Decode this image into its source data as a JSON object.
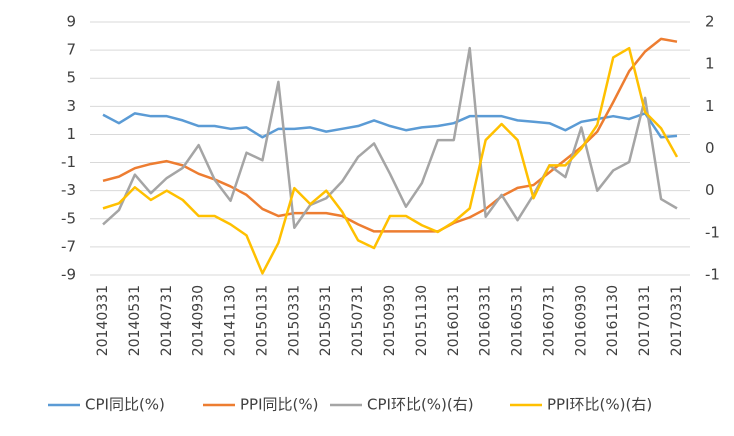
{
  "chart_data": {
    "type": "line",
    "categories": [
      "20140331",
      null,
      "20140531",
      null,
      "20140731",
      null,
      "20140930",
      null,
      "20141130",
      null,
      "20150131",
      null,
      "20150331",
      null,
      "20150531",
      null,
      "20150731",
      null,
      "20150930",
      null,
      "20151130",
      null,
      "20160131",
      null,
      "20160331",
      null,
      "20160531",
      null,
      "20160731",
      null,
      "20160930",
      null,
      "20161130",
      null,
      "20170131",
      null,
      "20170331"
    ],
    "ylim": [
      -9,
      9
    ],
    "yticks": [
      -9,
      -7,
      -5,
      -3,
      -1,
      1,
      3,
      5,
      7,
      9
    ],
    "y2lim": [
      -1.2,
      1.8
    ],
    "y2ticks": [
      {
        "value": -1.2,
        "label": "-1"
      },
      {
        "value": -0.7,
        "label": "-1"
      },
      {
        "value": -0.2,
        "label": "0"
      },
      {
        "value": 0.3,
        "label": "0"
      },
      {
        "value": 0.8,
        "label": "1"
      },
      {
        "value": 1.3,
        "label": "1"
      },
      {
        "value": 1.8,
        "label": "2"
      }
    ],
    "grid": true,
    "legend": "bottom",
    "series": [
      {
        "name": "CPI同比(%)",
        "color": "#5b9bd5",
        "values": [
          2.4,
          1.8,
          2.5,
          2.3,
          2.3,
          2.0,
          1.6,
          1.6,
          1.4,
          1.5,
          0.8,
          1.4,
          1.4,
          1.5,
          1.2,
          1.4,
          1.6,
          2.0,
          1.6,
          1.3,
          1.5,
          1.6,
          1.8,
          2.3,
          2.3,
          2.3,
          2.0,
          1.9,
          1.8,
          1.3,
          1.9,
          2.1,
          2.3,
          2.1,
          2.5,
          0.8,
          0.9
        ]
      },
      {
        "name": "PPI同比(%)",
        "color": "#ed7d31",
        "values": [
          -2.3,
          -2.0,
          -1.4,
          -1.1,
          -0.9,
          -1.2,
          -1.8,
          -2.2,
          -2.7,
          -3.3,
          -4.3,
          -4.8,
          -4.6,
          -4.6,
          -4.6,
          -4.8,
          -5.4,
          -5.9,
          -5.9,
          -5.9,
          -5.9,
          -5.9,
          -5.3,
          -4.9,
          -4.3,
          -3.4,
          -2.8,
          -2.6,
          -1.7,
          -0.8,
          0.1,
          1.2,
          3.3,
          5.5,
          6.9,
          7.8,
          7.6
        ]
      },
      {
        "name": "CPI环比(%)(右)",
        "color": "#a5a5a5",
        "axis": "y2",
        "values": [
          -0.6,
          -0.43,
          -0.01,
          -0.23,
          -0.05,
          0.07,
          0.34,
          -0.07,
          -0.32,
          0.25,
          0.16,
          1.09,
          -0.64,
          -0.37,
          -0.29,
          -0.09,
          0.2,
          0.36,
          0.0,
          -0.39,
          -0.11,
          0.4,
          0.4,
          1.49,
          -0.51,
          -0.25,
          -0.55,
          -0.25,
          0.1,
          -0.04,
          0.55,
          -0.2,
          0.04,
          0.14,
          0.9,
          -0.3,
          -0.41
        ]
      },
      {
        "name": "PPI环比(%)(右)",
        "color": "#ffc000",
        "axis": "y2",
        "values": [
          -0.41,
          -0.35,
          -0.16,
          -0.31,
          -0.2,
          -0.31,
          -0.5,
          -0.5,
          -0.6,
          -0.73,
          -1.18,
          -0.82,
          -0.17,
          -0.36,
          -0.2,
          -0.45,
          -0.79,
          -0.88,
          -0.5,
          -0.5,
          -0.61,
          -0.69,
          -0.57,
          -0.41,
          0.4,
          0.59,
          0.4,
          -0.29,
          0.1,
          0.1,
          0.3,
          0.58,
          1.38,
          1.49,
          0.73,
          0.54,
          0.2
        ]
      }
    ]
  }
}
